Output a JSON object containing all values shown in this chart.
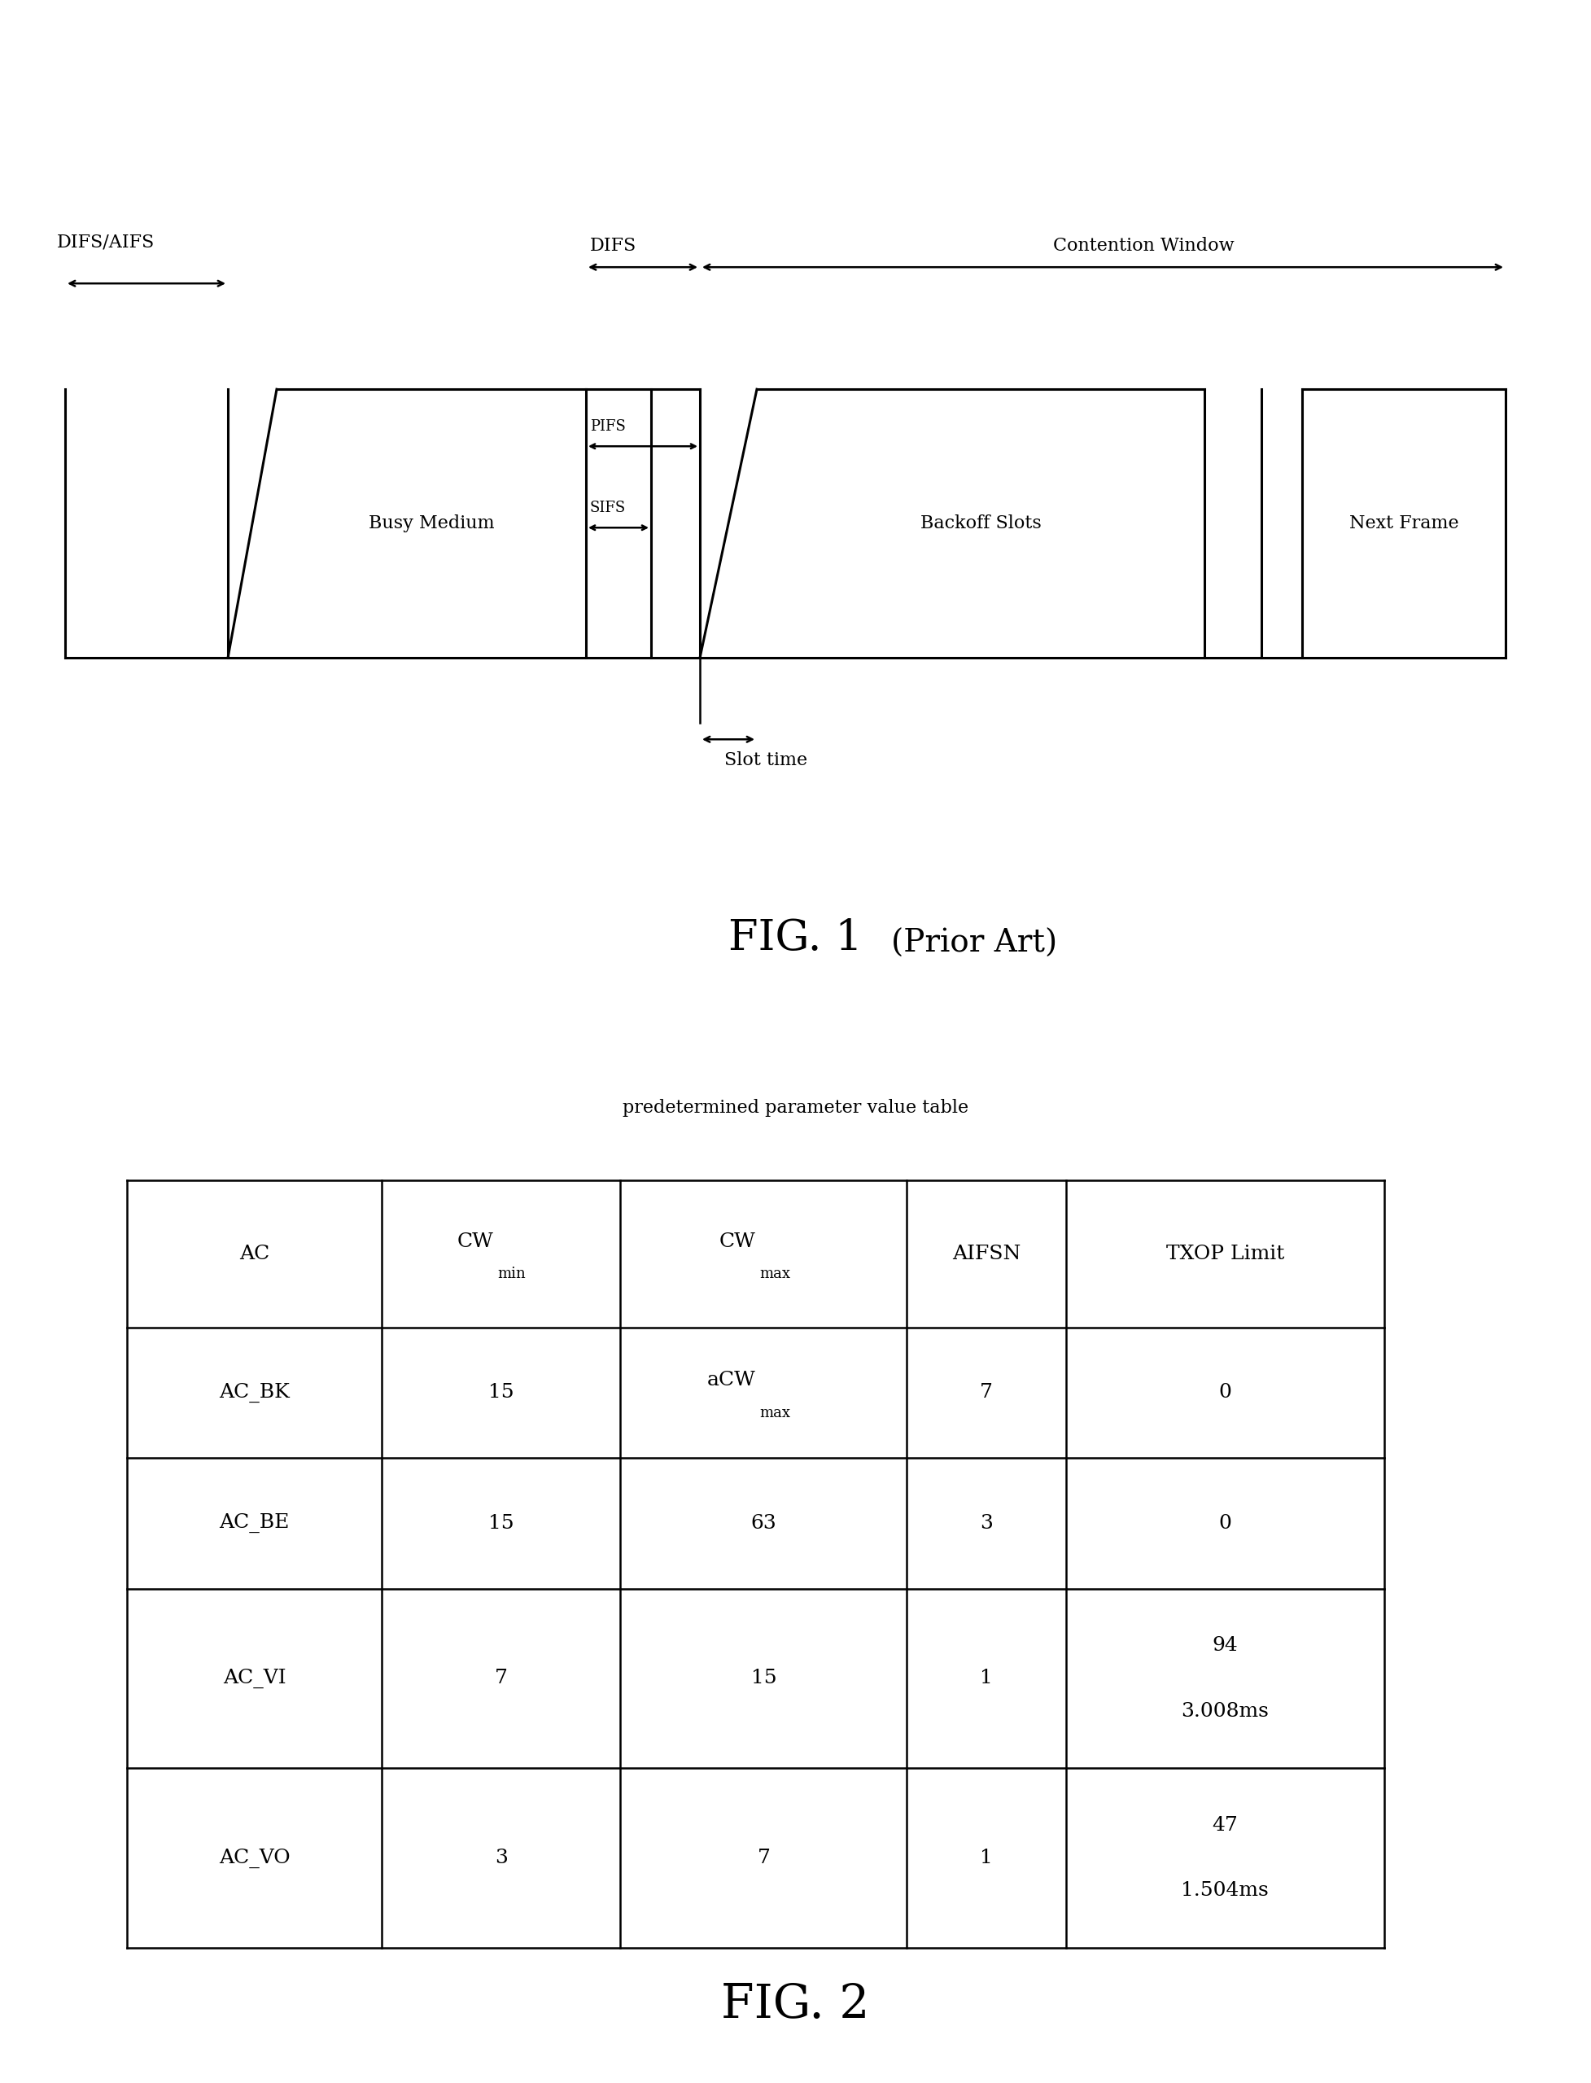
{
  "fig1_title": "FIG. 1",
  "fig1_subtitle": "(Prior Art)",
  "fig2_title": "FIG. 2",
  "fig2_subtitle": "predetermined parameter value table",
  "bg_color": "#ffffff",
  "line_color": "#000000",
  "table_rows": [
    [
      "AC_BK",
      "15",
      "aCW_max",
      "7",
      "0"
    ],
    [
      "AC_BE",
      "15",
      "63",
      "3",
      "0"
    ],
    [
      "AC_VI",
      "7",
      "15",
      "1",
      "94\n3.008ms"
    ],
    [
      "AC_VO",
      "3",
      "7",
      "1",
      "47\n1.504ms"
    ]
  ],
  "labels": {
    "DIFS_AIFS": "DIFS/AIFS",
    "DIFS": "DIFS",
    "Contention_Window": "Contention Window",
    "PIFS": "PIFS",
    "SIFS": "SIFS",
    "Busy_Medium": "Busy Medium",
    "Backoff_Slots": "Backoff Slots",
    "Next_Frame": "Next Frame",
    "Slot_time": "Slot time"
  }
}
